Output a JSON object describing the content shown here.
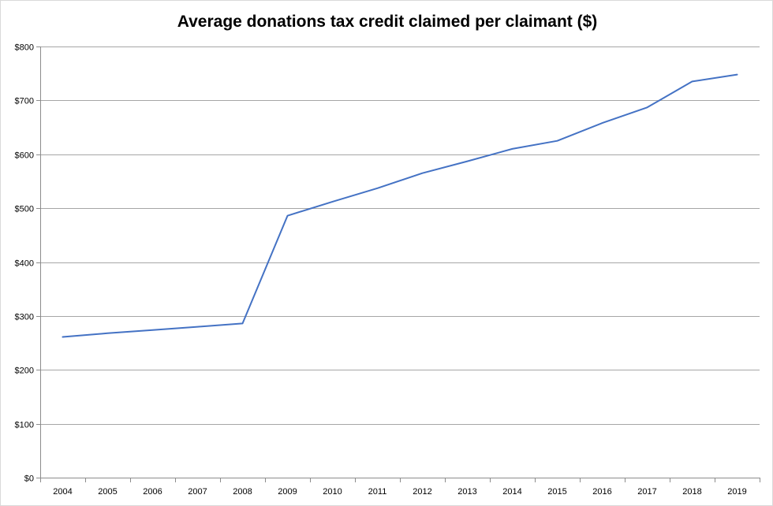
{
  "chart_data": {
    "type": "line",
    "title": "Average donations tax credit claimed per claimant ($)",
    "xlabel": "",
    "ylabel": "",
    "categories": [
      "2004",
      "2005",
      "2006",
      "2007",
      "2008",
      "2009",
      "2010",
      "2011",
      "2012",
      "2013",
      "2014",
      "2015",
      "2016",
      "2017",
      "2018",
      "2019"
    ],
    "series": [
      {
        "name": "Average donations tax credit claimed per claimant ($)",
        "color": "#4472c4",
        "values": [
          261,
          268,
          274,
          280,
          286,
          486,
          512,
          537,
          565,
          587,
          610,
          625,
          658,
          687,
          735,
          748
        ]
      }
    ],
    "ylim": [
      0,
      800
    ],
    "yticks": [
      0,
      100,
      200,
      300,
      400,
      500,
      600,
      700,
      800
    ],
    "ytick_labels": [
      "$0",
      "$100",
      "$200",
      "$300",
      "$400",
      "$500",
      "$600",
      "$700",
      "$800"
    ],
    "grid": true,
    "gridline_color": "#a6a6a6",
    "legend": "none"
  }
}
